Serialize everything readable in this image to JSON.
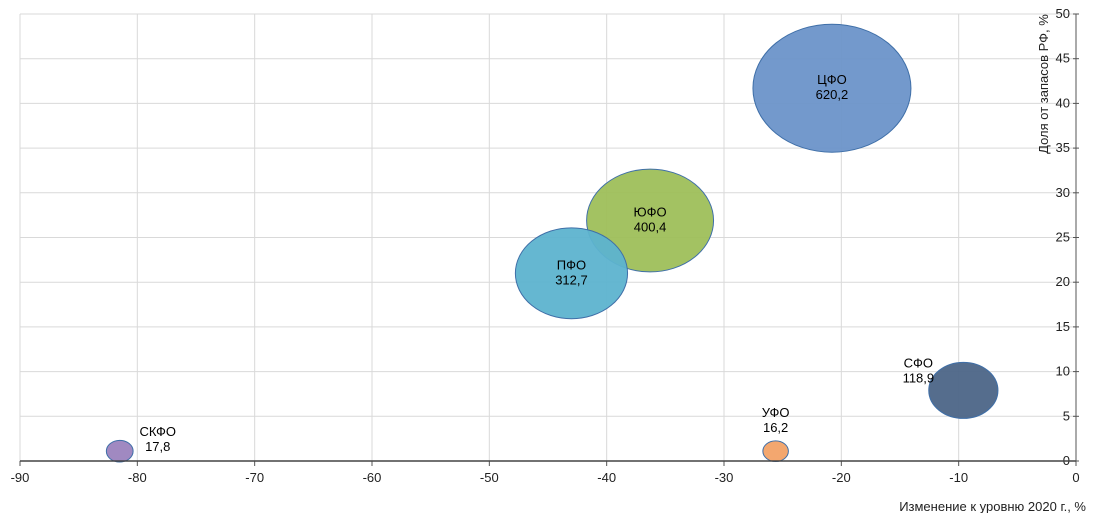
{
  "chart_data": {
    "type": "bubble",
    "xlabel": "Изменение к уровню 2020 г., %",
    "ylabel": "Доля  от запасов РФ, %",
    "xlim": [
      -90,
      0
    ],
    "ylim": [
      0,
      50
    ],
    "x_ticks": [
      -90,
      -80,
      -70,
      -60,
      -50,
      -40,
      -30,
      -20,
      -10,
      0
    ],
    "y_ticks": [
      0,
      5,
      10,
      15,
      20,
      25,
      30,
      35,
      40,
      45,
      50
    ],
    "grid": true,
    "series": [
      {
        "name": "ЦФО",
        "x": -20.8,
        "y": 41.7,
        "size": 620.2,
        "size_label": "620,2",
        "color": "#6b94c9"
      },
      {
        "name": "ЮФО",
        "x": -36.3,
        "y": 26.9,
        "size": 400.4,
        "size_label": "400,4",
        "color": "#9ebf5a"
      },
      {
        "name": "ПФО",
        "x": -43.0,
        "y": 21.0,
        "size": 312.7,
        "size_label": "312,7",
        "color": "#5db3cf"
      },
      {
        "name": "СФО",
        "x": -9.6,
        "y": 7.9,
        "size": 118.9,
        "size_label": "118,9",
        "color": "#4c6587"
      },
      {
        "name": "УФО",
        "x": -25.6,
        "y": 1.1,
        "size": 16.2,
        "size_label": "16,2",
        "color": "#f2a267"
      },
      {
        "name": "СКФО",
        "x": -81.5,
        "y": 1.1,
        "size": 17.8,
        "size_label": "17,8",
        "color": "#9b83be"
      }
    ]
  }
}
